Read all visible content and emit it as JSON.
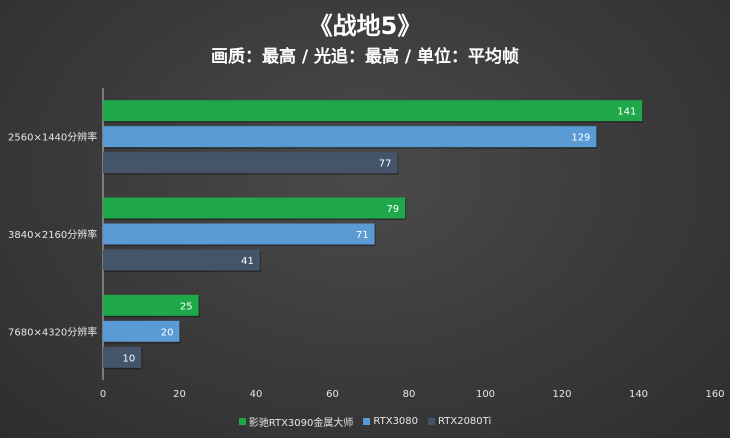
{
  "chart_data": {
    "type": "bar",
    "orientation": "horizontal",
    "title": "《战地5》",
    "subtitle": "画质：最高 / 光追：最高 / 单位：平均帧",
    "categories": [
      "2560×1440分辨率",
      "3840×2160分辨率",
      "7680×4320分辨率"
    ],
    "series": [
      {
        "name": "影驰RTX3090金属大师",
        "color": "#1fa84a",
        "values": [
          141,
          79,
          25
        ]
      },
      {
        "name": "RTX3080",
        "color": "#5b9bd5",
        "values": [
          129,
          71,
          20
        ]
      },
      {
        "name": "RTX2080Ti",
        "color": "#44546a",
        "values": [
          77,
          41,
          10
        ]
      }
    ],
    "xlim": [
      0,
      160
    ],
    "xticks": [
      "0",
      "20",
      "40",
      "60",
      "80",
      "100",
      "120",
      "140",
      "160"
    ],
    "grid": false,
    "legend_position": "bottom"
  }
}
